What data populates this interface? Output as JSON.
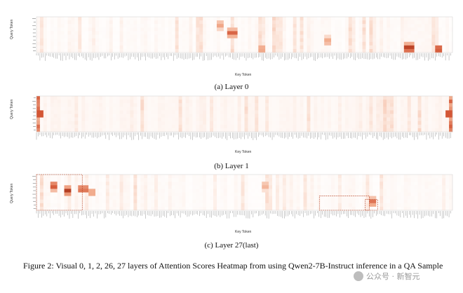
{
  "chart_data": [
    {
      "type": "heatmap",
      "title": "",
      "xlabel": "Key Token",
      "ylabel": "Query Token",
      "caption": "(a) Layer 0",
      "colormap": [
        "#ffffff",
        "#fbe2d6",
        "#f1a98a",
        "#d1502f",
        "#7a1a0c"
      ],
      "hot_spots": [
        {
          "col": 0.47,
          "row": 0.45,
          "v": 0.7
        },
        {
          "col": 0.54,
          "row": 0.95,
          "v": 0.6
        },
        {
          "col": 0.44,
          "row": 0.2,
          "v": 0.55
        },
        {
          "col": 0.9,
          "row": 0.92,
          "v": 0.9
        },
        {
          "col": 0.97,
          "row": 0.95,
          "v": 0.85
        },
        {
          "col": 0.7,
          "row": 0.7,
          "v": 0.55
        }
      ]
    },
    {
      "type": "heatmap",
      "title": "",
      "xlabel": "Key Token",
      "ylabel": "Query Token",
      "caption": "(b) Layer 1",
      "colormap": [
        "#ffffff",
        "#fbe2d6",
        "#f1a98a",
        "#d1502f",
        "#7a1a0c"
      ],
      "hot_spots": [
        {
          "col": 0.0,
          "row": 0.5,
          "v": 0.9
        },
        {
          "col": 0.995,
          "row": 0.5,
          "v": 0.9
        }
      ]
    },
    {
      "type": "heatmap",
      "title": "",
      "xlabel": "Key Token",
      "ylabel": "Query Token",
      "caption": "(c) Layer 27(last)",
      "colormap": [
        "#ffffff",
        "#fbe2d6",
        "#f1a98a",
        "#d1502f",
        "#7a1a0c"
      ],
      "hot_spots": [
        {
          "col": 0.04,
          "row": 0.3,
          "v": 0.8
        },
        {
          "col": 0.07,
          "row": 0.45,
          "v": 0.85
        },
        {
          "col": 0.11,
          "row": 0.4,
          "v": 0.75
        },
        {
          "col": 0.13,
          "row": 0.5,
          "v": 0.6
        },
        {
          "col": 0.55,
          "row": 0.3,
          "v": 0.5
        },
        {
          "col": 0.81,
          "row": 0.8,
          "v": 0.7
        }
      ],
      "highlight_boxes": [
        {
          "col0": 0.0,
          "col1": 0.11,
          "row0": 0.0,
          "row1": 1.0
        },
        {
          "col0": 0.68,
          "col1": 0.8,
          "row0": 0.6,
          "row1": 1.0
        },
        {
          "col0": 0.79,
          "col1": 0.82,
          "row0": 0.7,
          "row1": 1.0
        }
      ]
    }
  ],
  "figure_caption": "Figure 2:  Visual 0, 1, 2, 26, 27 layers of Attention Scores Heatmap from using Qwen2-7B-Instruct inference in a QA Sample",
  "watermark": "公众号 · 新智元"
}
